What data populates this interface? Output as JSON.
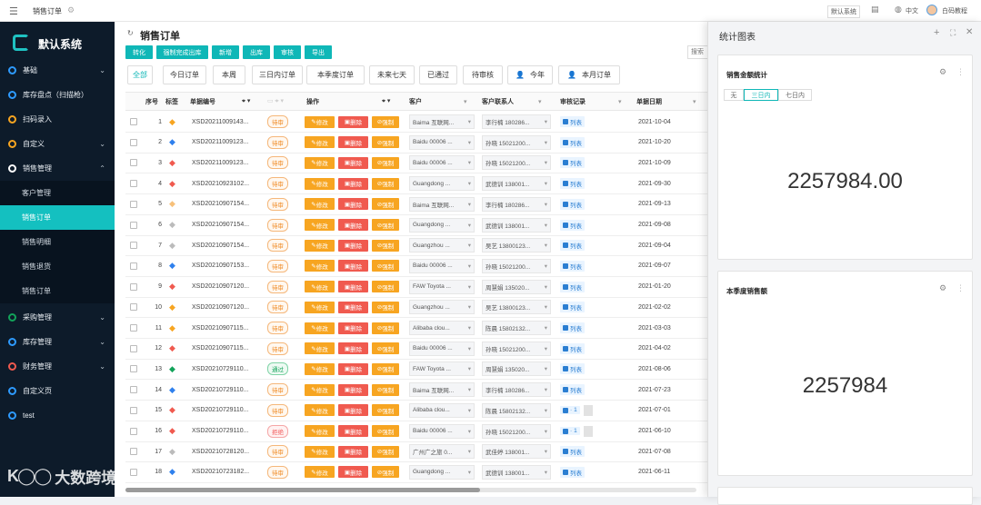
{
  "topbar": {
    "tab": "销售订单",
    "system": "默认系统",
    "lang": "中文",
    "user": "白码教程"
  },
  "sidebar": {
    "title": "默认系统",
    "items": [
      {
        "label": "基础",
        "chev": "⌄",
        "y": 0
      },
      {
        "label": "库存盘点（扫描枪）",
        "chev": "",
        "y": 1
      },
      {
        "label": "扫码录入",
        "chev": "",
        "y": 2
      },
      {
        "label": "自定义",
        "chev": "⌄",
        "y": 3
      },
      {
        "label": "销售管理",
        "chev": "⌃",
        "y": 4
      }
    ],
    "subitems": [
      "客户管理",
      "销售订单",
      "销售明细",
      "销售退货",
      "销售订单"
    ],
    "items2": [
      {
        "label": "采购管理",
        "chev": "⌄"
      },
      {
        "label": "库存管理",
        "chev": "⌄"
      },
      {
        "label": "财务管理",
        "chev": "⌄"
      },
      {
        "label": "自定义页",
        "chev": ""
      },
      {
        "label": "test",
        "chev": ""
      }
    ]
  },
  "main": {
    "title": "销售订单",
    "buttons": [
      "转化",
      "强制完成出库",
      "新增",
      "出库",
      "审核",
      "导出"
    ],
    "search_placeholder": "搜索",
    "tabs": [
      "全部",
      "今日订单",
      "本周",
      "三日内订单",
      "本季度订单",
      "未来七天",
      "已通过",
      "待审核",
      "今年",
      "本月订单"
    ],
    "headers": {
      "seq": "序号",
      "mark": "标签",
      "code": "单据编号",
      "op": "操作",
      "customer": "客户",
      "contact": "客户联系人",
      "review": "审核记录",
      "date": "单据日期"
    },
    "ops": {
      "edit": "修改",
      "del": "删除",
      "force": "强制"
    },
    "review_label": "列表",
    "review_count": "1",
    "rows": [
      {
        "seq": "1",
        "mark": "#f7a521",
        "code": "XSD20211009143...",
        "status": "待审",
        "st": "p",
        "customer": "Baima 互联网...",
        "contact": "李行楠 180286...",
        "rev": "list",
        "date": "2021-10-04"
      },
      {
        "seq": "2",
        "mark": "#2f80ed",
        "code": "XSD20211009123...",
        "status": "待审",
        "st": "p",
        "customer": "Baidu 00006 ...",
        "contact": "孙晓 15021200...",
        "rev": "list",
        "date": "2021-10-20"
      },
      {
        "seq": "3",
        "mark": "#f05a4f",
        "code": "XSD20211009123...",
        "status": "待审",
        "st": "p",
        "customer": "Baidu 00006 ...",
        "contact": "孙晓 15021200...",
        "rev": "list",
        "date": "2021-10-09"
      },
      {
        "seq": "4",
        "mark": "#f05a4f",
        "code": "XSD20210923102...",
        "status": "待审",
        "st": "p",
        "customer": "Guangdong ...",
        "contact": "武德训 138001...",
        "rev": "list",
        "date": "2021-09-30"
      },
      {
        "seq": "5",
        "mark": "#f7c07a",
        "code": "XSD20210907154...",
        "status": "待审",
        "st": "p",
        "customer": "Baima 互联网...",
        "contact": "李行楠 180286...",
        "rev": "list",
        "date": "2021-09-13"
      },
      {
        "seq": "6",
        "mark": "#bbbbbb",
        "code": "XSD20210907154...",
        "status": "待审",
        "st": "p",
        "customer": "Guangdong ...",
        "contact": "武德训 138001...",
        "rev": "list",
        "date": "2021-09-08"
      },
      {
        "seq": "7",
        "mark": "#bbbbbb",
        "code": "XSD20210907154...",
        "status": "待审",
        "st": "p",
        "customer": "Guangzhou ...",
        "contact": "吴艺 13800123...",
        "rev": "list",
        "date": "2021-09-04"
      },
      {
        "seq": "8",
        "mark": "#2f80ed",
        "code": "XSD20210907153...",
        "status": "待审",
        "st": "p",
        "customer": "Baidu 00006 ...",
        "contact": "孙晓 15021200...",
        "rev": "list",
        "date": "2021-09-07"
      },
      {
        "seq": "9",
        "mark": "#f05a4f",
        "code": "XSD20210907120...",
        "status": "待审",
        "st": "p",
        "customer": "FAW Toyota ...",
        "contact": "周慧娟 135020...",
        "rev": "list",
        "date": "2021-01-20"
      },
      {
        "seq": "10",
        "mark": "#f7a521",
        "code": "XSD20210907120...",
        "status": "待审",
        "st": "p",
        "customer": "Guangzhou ...",
        "contact": "吴艺 13800123...",
        "rev": "list",
        "date": "2021-02-02"
      },
      {
        "seq": "11",
        "mark": "#f7a521",
        "code": "XSD20210907115...",
        "status": "待审",
        "st": "p",
        "customer": "Alibaba clou...",
        "contact": "陈晨 15802132...",
        "rev": "list",
        "date": "2021-03-03"
      },
      {
        "seq": "12",
        "mark": "#f05a4f",
        "code": "XSD20210907115...",
        "status": "待审",
        "st": "p",
        "customer": "Baidu 00006 ...",
        "contact": "孙晓 15021200...",
        "rev": "list",
        "date": "2021-04-02"
      },
      {
        "seq": "13",
        "mark": "#12a35a",
        "code": "XSD20210729110...",
        "status": "通过",
        "st": "a",
        "customer": "FAW Toyota ...",
        "contact": "周慧娟 135020...",
        "rev": "list",
        "date": "2021-08-06"
      },
      {
        "seq": "14",
        "mark": "#2f80ed",
        "code": "XSD20210729110...",
        "status": "待审",
        "st": "p",
        "customer": "Baima 互联网...",
        "contact": "李行楠 180286...",
        "rev": "list",
        "date": "2021-07-23"
      },
      {
        "seq": "15",
        "mark": "#f05a4f",
        "code": "XSD20210729110...",
        "status": "待审",
        "st": "p",
        "customer": "Alibaba clou...",
        "contact": "陈晨 15802132...",
        "rev": "count",
        "date": "2021-07-01"
      },
      {
        "seq": "16",
        "mark": "#f05a4f",
        "code": "XSD20210729110...",
        "status": "拒绝",
        "st": "r",
        "customer": "Baidu 00006 ...",
        "contact": "孙晓 15021200...",
        "rev": "count",
        "date": "2021-06-10"
      },
      {
        "seq": "17",
        "mark": "#bbbbbb",
        "code": "XSD20210728120...",
        "status": "待审",
        "st": "p",
        "customer": "广州广之旅 0...",
        "contact": "武佳婷 138001...",
        "rev": "list",
        "date": "2021-07-08"
      },
      {
        "seq": "18",
        "mark": "#2f80ed",
        "code": "XSD20210723182...",
        "status": "待审",
        "st": "p",
        "customer": "Guangdong ...",
        "contact": "武德训 138001...",
        "rev": "list",
        "date": "2021-06-11"
      }
    ]
  },
  "panel": {
    "title": "统计图表",
    "card1": {
      "title": "销售金额统计",
      "ranges": [
        "无",
        "三日内",
        "七日内"
      ],
      "value": "2257984.00"
    },
    "card2": {
      "title": "本季度销售额",
      "value": "2257984"
    }
  },
  "watermark": "大数跨境",
  "colors": {
    "accent": "#0fb7b7",
    "sidebar": "#0d1b2a",
    "edit": "#f7a521",
    "delete": "#f05a4f"
  }
}
